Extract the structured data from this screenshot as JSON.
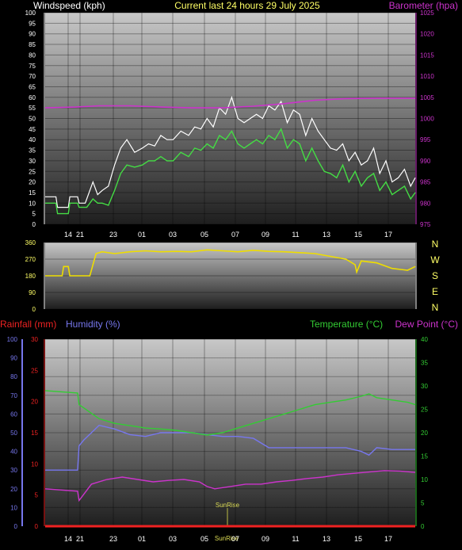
{
  "header": {
    "wind_title": "Windspeed (kph)",
    "center_title": "Current last 24 hours 29 July 2025",
    "baro_title": "Barometer (hpa)"
  },
  "compass": [
    "N",
    "W",
    "S",
    "E",
    "N"
  ],
  "bottom_header": {
    "rainfall_title": "Rainfall (mm)",
    "humidity_title": "Humidity (%)",
    "temperature_title": "Temperature (°C)",
    "dewpoint_title": "Dew Point (°C)"
  },
  "sun_labels": {
    "sunrise": "SunRise",
    "sunrise_axis": "SunRise"
  },
  "colors": {
    "wind_gust": "#ffffff",
    "wind_avg": "#44dd44",
    "barometer": "#cc33cc",
    "direction": "#eedd00",
    "rainfall": "#ee2222",
    "humidity": "#7777ee",
    "temperature": "#33cc33",
    "dewpoint": "#cc33cc",
    "sunrise": "#bbbb44"
  },
  "x_axis": {
    "ticks": [
      "14",
      "21",
      "23",
      "01",
      "03",
      "05",
      "07",
      "09",
      "11",
      "13",
      "15",
      "17"
    ]
  },
  "chart_data": [
    {
      "type": "line",
      "name": "wind-barometer",
      "x_range": [
        12.5,
        36.5
      ],
      "y_left": {
        "label": "Windspeed (kph)",
        "range": [
          0,
          100
        ],
        "ticks": [
          0,
          5,
          10,
          15,
          20,
          25,
          30,
          35,
          40,
          45,
          50,
          55,
          60,
          65,
          70,
          75,
          80,
          85,
          90,
          95,
          100
        ]
      },
      "y_right": {
        "label": "Barometer (hpa)",
        "range": [
          975,
          1025
        ],
        "ticks": [
          975,
          980,
          985,
          990,
          995,
          1000,
          1005,
          1010,
          1015,
          1020,
          1025
        ]
      },
      "series": [
        {
          "name": "gust",
          "axis": "left",
          "x": [
            12.5,
            13.2,
            13.3,
            14.0,
            14.1,
            14.6,
            14.7,
            15.1,
            15.2,
            15.6,
            15.9,
            16.2,
            16.6,
            17.0,
            17.4,
            17.8,
            18.3,
            18.8,
            19.2,
            19.6,
            20.0,
            20.4,
            20.8,
            21.3,
            21.8,
            22.2,
            22.6,
            23.0,
            23.4,
            23.8,
            24.2,
            24.6,
            25.0,
            25.4,
            25.8,
            26.2,
            26.6,
            27.0,
            27.4,
            27.8,
            28.2,
            28.6,
            29.0,
            29.4,
            29.8,
            30.2,
            30.6,
            31.0,
            31.4,
            31.8,
            32.2,
            32.6,
            33.0,
            33.4,
            33.8,
            34.2,
            34.6,
            35.0,
            35.4,
            35.8,
            36.2,
            36.5
          ],
          "y": [
            13,
            13,
            8,
            8,
            13,
            13,
            10,
            10,
            12,
            20,
            14,
            16,
            18,
            28,
            36,
            40,
            34,
            36,
            38,
            37,
            42,
            40,
            40,
            44,
            42,
            46,
            45,
            50,
            46,
            55,
            52,
            60,
            50,
            48,
            50,
            52,
            50,
            56,
            54,
            58,
            48,
            54,
            52,
            42,
            50,
            44,
            40,
            36,
            35,
            38,
            30,
            34,
            28,
            30,
            36,
            24,
            30,
            20,
            22,
            26,
            18,
            22
          ]
        },
        {
          "name": "average",
          "axis": "left",
          "x": [
            12.5,
            13.2,
            13.3,
            14.0,
            14.1,
            14.6,
            14.7,
            15.1,
            15.2,
            15.6,
            15.9,
            16.2,
            16.6,
            17.0,
            17.4,
            17.8,
            18.3,
            18.8,
            19.2,
            19.6,
            20.0,
            20.4,
            20.8,
            21.3,
            21.8,
            22.2,
            22.6,
            23.0,
            23.4,
            23.8,
            24.2,
            24.6,
            25.0,
            25.4,
            25.8,
            26.2,
            26.6,
            27.0,
            27.4,
            27.8,
            28.2,
            28.6,
            29.0,
            29.4,
            29.8,
            30.2,
            30.6,
            31.0,
            31.4,
            31.8,
            32.2,
            32.6,
            33.0,
            33.4,
            33.8,
            34.2,
            34.6,
            35.0,
            35.4,
            35.8,
            36.2,
            36.5
          ],
          "y": [
            10,
            10,
            5,
            5,
            10,
            10,
            8,
            8,
            8,
            12,
            10,
            10,
            9,
            16,
            24,
            28,
            27,
            28,
            30,
            30,
            32,
            30,
            30,
            34,
            32,
            36,
            35,
            38,
            36,
            42,
            40,
            44,
            38,
            36,
            38,
            40,
            38,
            42,
            40,
            45,
            36,
            40,
            38,
            30,
            36,
            30,
            25,
            24,
            22,
            28,
            20,
            25,
            18,
            22,
            24,
            16,
            20,
            14,
            16,
            18,
            12,
            15
          ]
        },
        {
          "name": "barometer",
          "axis": "right",
          "x": [
            12.5,
            14.5,
            16.0,
            18.0,
            20.0,
            22.0,
            24.0,
            26.0,
            28.0,
            30.0,
            32.0,
            34.0,
            36.5
          ],
          "y": [
            1002.5,
            1002.7,
            1003.0,
            1003.0,
            1002.7,
            1002.5,
            1002.5,
            1002.9,
            1003.5,
            1004.3,
            1004.7,
            1004.8,
            1004.8
          ]
        }
      ]
    },
    {
      "type": "line",
      "name": "wind-direction",
      "x_range": [
        12.5,
        36.5
      ],
      "y_left": {
        "range": [
          0,
          360
        ],
        "ticks": [
          0,
          90,
          180,
          270,
          360
        ]
      },
      "series": [
        {
          "name": "direction",
          "axis": "left",
          "x": [
            12.5,
            13.6,
            13.7,
            14.0,
            14.1,
            15.4,
            15.8,
            16.2,
            17.0,
            18.0,
            19.0,
            20.0,
            21.0,
            22.0,
            23.0,
            24.0,
            25.0,
            26.0,
            27.0,
            28.0,
            29.0,
            30.0,
            31.0,
            32.0,
            32.6,
            32.7,
            33.0,
            34.0,
            35.0,
            36.0,
            36.5
          ],
          "y": [
            180,
            180,
            230,
            230,
            180,
            180,
            300,
            310,
            300,
            310,
            315,
            310,
            312,
            310,
            320,
            315,
            310,
            318,
            312,
            310,
            305,
            300,
            285,
            270,
            240,
            200,
            260,
            250,
            220,
            210,
            230
          ]
        }
      ]
    },
    {
      "type": "line",
      "name": "rain-humidity-temp-dew",
      "x_range": [
        12.5,
        36.5
      ],
      "y_left_rain": {
        "label": "Rainfall (mm)",
        "range": [
          0,
          30
        ],
        "ticks": [
          0,
          5,
          10,
          15,
          20,
          25,
          30
        ]
      },
      "y_left_humidity": {
        "label": "Humidity (%)",
        "range": [
          0,
          100
        ],
        "ticks": [
          0,
          10,
          20,
          30,
          40,
          50,
          60,
          70,
          80,
          90,
          100
        ]
      },
      "y_right": {
        "label": "Temperature (°C)",
        "range": [
          0,
          40
        ],
        "ticks": [
          0,
          5,
          10,
          15,
          20,
          25,
          30,
          35,
          40
        ]
      },
      "series": [
        {
          "name": "rainfall",
          "axis": "rain",
          "x": [
            12.5,
            36.5
          ],
          "y": [
            0,
            0
          ]
        },
        {
          "name": "humidity",
          "axis": "humidity",
          "x": [
            12.5,
            14.6,
            14.7,
            15.0,
            15.5,
            16.0,
            17.0,
            18.0,
            19.0,
            20.0,
            21.0,
            22.0,
            23.0,
            24.0,
            25.0,
            26.0,
            26.8,
            27.0,
            28.0,
            29.0,
            30.0,
            31.0,
            32.0,
            33.0,
            33.5,
            34.0,
            35.0,
            36.0,
            36.5
          ],
          "y": [
            30,
            30,
            43,
            46,
            50,
            54,
            52,
            49,
            48,
            50,
            50,
            50,
            49,
            48,
            48,
            47,
            43,
            42,
            42,
            42,
            42,
            42,
            42,
            40,
            38,
            42,
            41,
            41,
            41
          ]
        },
        {
          "name": "temperature",
          "axis": "right",
          "x": [
            12.5,
            14.6,
            14.7,
            16.0,
            17.0,
            18.0,
            19.0,
            20.0,
            21.0,
            22.0,
            23.0,
            24.0,
            25.0,
            26.0,
            27.0,
            28.0,
            29.0,
            30.0,
            31.0,
            32.0,
            33.0,
            33.5,
            34.0,
            35.0,
            36.0,
            36.5
          ],
          "y": [
            29,
            28.5,
            26,
            23,
            22,
            21.5,
            21,
            20.8,
            20.5,
            20,
            19.5,
            20,
            21,
            22,
            23,
            24,
            25,
            26,
            26.5,
            27,
            27.8,
            28.3,
            27.5,
            27,
            26.5,
            26
          ]
        },
        {
          "name": "dewpoint",
          "axis": "right",
          "x": [
            12.5,
            14.6,
            14.7,
            15.5,
            16.5,
            17.5,
            18.5,
            19.5,
            20.5,
            21.5,
            22.5,
            23.0,
            23.5,
            24.5,
            25.5,
            26.5,
            27.5,
            28.5,
            29.5,
            30.5,
            31.5,
            32.5,
            33.5,
            34.5,
            35.5,
            36.5
          ],
          "y": [
            8,
            7.5,
            5.5,
            9,
            10,
            10.5,
            10,
            9.5,
            9.8,
            10,
            9.5,
            8.5,
            8,
            8.5,
            9,
            9,
            9.5,
            9.8,
            10.2,
            10.5,
            11,
            11.3,
            11.6,
            11.9,
            11.8,
            11.5
          ]
        }
      ]
    }
  ]
}
